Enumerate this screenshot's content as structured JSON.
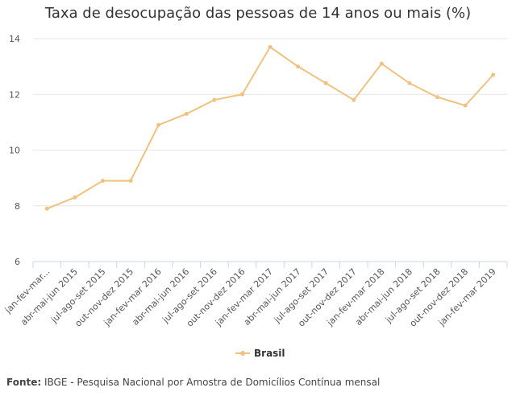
{
  "chart_data": {
    "type": "line",
    "title": "Taxa de desocupação das pessoas de 14 anos ou mais (%)",
    "categories": [
      "jan-fev-mar...",
      "abr-mai-jun 2015",
      "jul-ago-set 2015",
      "out-nov-dez 2015",
      "jan-fev-mar 2016",
      "abr-mai-jun 2016",
      "jul-ago-set 2016",
      "out-nov-dez 2016",
      "jan-fev-mar 2017",
      "abr-mai-jun 2017",
      "jul-ago-set 2017",
      "out-nov-dez 2017",
      "jan-fev-mar 2018",
      "abr-mai-jun 2018",
      "jul-ago-set 2018",
      "out-nov-dez 2018",
      "jan-fev-mar 2019"
    ],
    "series": [
      {
        "name": "Brasil",
        "color": "#f0c27f",
        "values": [
          7.9,
          8.3,
          8.9,
          8.9,
          10.9,
          11.3,
          11.8,
          12.0,
          13.7,
          13.0,
          12.4,
          11.8,
          13.1,
          12.4,
          11.9,
          11.6,
          12.7
        ]
      }
    ],
    "xlabel": "",
    "ylabel": "",
    "ylim": [
      6,
      14
    ],
    "yticks": [
      6,
      8,
      10,
      12,
      14
    ],
    "grid": true,
    "legend_position": "bottom-center"
  },
  "source": {
    "label": "Fonte:",
    "text": "IBGE - Pesquisa Nacional por Amostra de Domicílios Contínua mensal"
  }
}
